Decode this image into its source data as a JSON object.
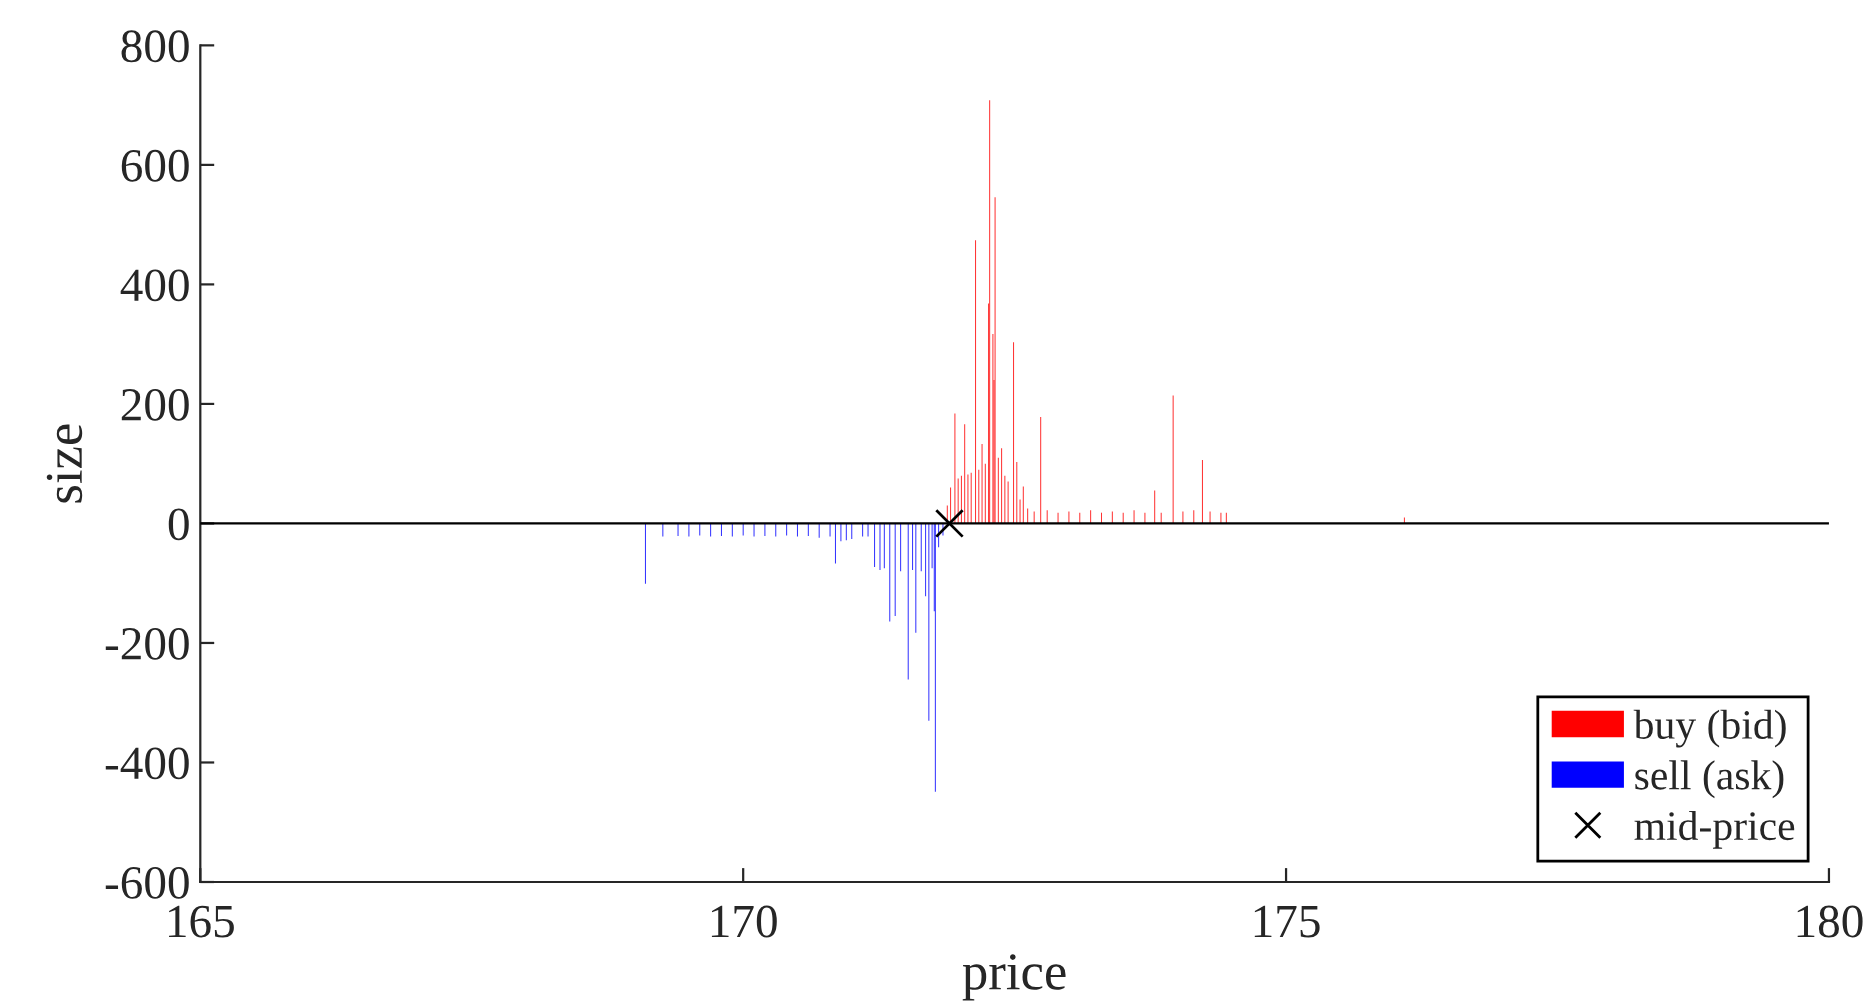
{
  "chart_data": {
    "type": "bar",
    "xlabel": "price",
    "ylabel": "size",
    "xlim": [
      165,
      180
    ],
    "xticks": [
      165,
      170,
      175,
      180
    ],
    "ylim": [
      -600,
      800
    ],
    "yticks": [
      -600,
      -400,
      -200,
      0,
      200,
      400,
      600,
      800
    ],
    "grid": false,
    "legend": "bottom right",
    "ref_lines": [
      {
        "axis": "y",
        "value": 0,
        "color": "#000000"
      }
    ],
    "series": [
      {
        "name": "buy (bid)",
        "color": "#ff0000",
        "x": [
          171.88,
          171.91,
          171.95,
          171.98,
          172.01,
          172.04,
          172.07,
          172.1,
          172.14,
          172.17,
          172.2,
          172.23,
          172.26,
          172.27,
          172.3,
          172.31,
          172.32,
          172.35,
          172.38,
          172.41,
          172.44,
          172.49,
          172.52,
          172.55,
          172.58,
          172.62,
          172.68,
          172.74,
          172.8,
          172.9,
          173.0,
          173.1,
          173.2,
          173.3,
          173.4,
          173.5,
          173.6,
          173.7,
          173.79,
          173.85,
          173.96,
          174.05,
          174.15,
          174.23,
          174.3,
          174.4,
          174.45,
          176.09
        ],
        "values": [
          30,
          60,
          184,
          75,
          80,
          166,
          82,
          85,
          474,
          90,
          133,
          100,
          368,
          708,
          317,
          240,
          546,
          110,
          126,
          80,
          70,
          303,
          103,
          40,
          62,
          25,
          20,
          178,
          22,
          18,
          20,
          18,
          22,
          18,
          20,
          18,
          22,
          18,
          55,
          18,
          214,
          20,
          22,
          106,
          20,
          18,
          18,
          10
        ]
      },
      {
        "name": "sell (ask)",
        "color": "#0000ff",
        "x": [
          169.1,
          169.26,
          169.4,
          169.5,
          169.6,
          169.7,
          169.8,
          169.9,
          170.0,
          170.1,
          170.2,
          170.3,
          170.4,
          170.5,
          170.6,
          170.7,
          170.8,
          170.85,
          170.9,
          170.95,
          171.0,
          171.1,
          171.15,
          171.21,
          171.26,
          171.3,
          171.35,
          171.4,
          171.45,
          171.52,
          171.56,
          171.59,
          171.64,
          171.68,
          171.71,
          171.74,
          171.76,
          171.77,
          171.8,
          171.84
        ],
        "values": [
          -101,
          -22,
          -21,
          -22,
          -20,
          -22,
          -21,
          -22,
          -20,
          -22,
          -21,
          -22,
          -20,
          -22,
          -21,
          -24,
          -22,
          -67,
          -30,
          -28,
          -26,
          -22,
          -22,
          -73,
          -78,
          -75,
          -164,
          -155,
          -80,
          -261,
          -78,
          -183,
          -80,
          -122,
          -330,
          -75,
          -147,
          -449,
          -40,
          -20
        ]
      },
      {
        "name": "mid-price",
        "type": "scatter",
        "marker": "cross",
        "color": "#000000",
        "x": [
          171.9
        ],
        "values": [
          0
        ]
      }
    ]
  }
}
